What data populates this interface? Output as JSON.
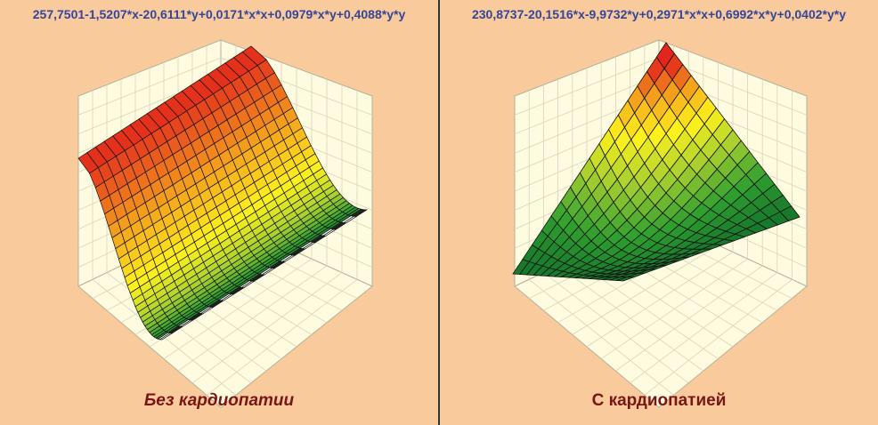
{
  "chart_data": [
    {
      "type": "surface3d",
      "equation": "257,7501-1,5207*x-20,6111*y+0,0171*x*x+0,0979*x*y+0,4088*y*y",
      "title": "Без кардиопатии",
      "title_style": "italic",
      "coefficients": {
        "c": 257.7501,
        "x": -1.5207,
        "y": -20.6111,
        "xx": 0.0171,
        "xy": 0.0979,
        "yy": 0.4088
      },
      "axis_labels": false,
      "grid": true
    },
    {
      "type": "surface3d",
      "equation": "230,8737-20,1516*x-9,9732*y+0,2971*x*x+0,6992*x*y+0,0402*y*y",
      "title": "С кардиопатией",
      "title_style": "normal",
      "coefficients": {
        "c": 230.8737,
        "x": -20.1516,
        "y": -9.9732,
        "xx": 0.2971,
        "xy": 0.6992,
        "yy": 0.0402
      },
      "axis_labels": false,
      "grid": true
    }
  ],
  "colors": {
    "background": "#f9cb9c",
    "box": "#fefbe0",
    "grid": "#d8d5b8",
    "equation": "#34459a",
    "caption": "#7a1515",
    "colormap": [
      "#0e6a2a",
      "#2f9f2f",
      "#a6cf2f",
      "#fff21c",
      "#f5a21c",
      "#e2261c"
    ]
  }
}
